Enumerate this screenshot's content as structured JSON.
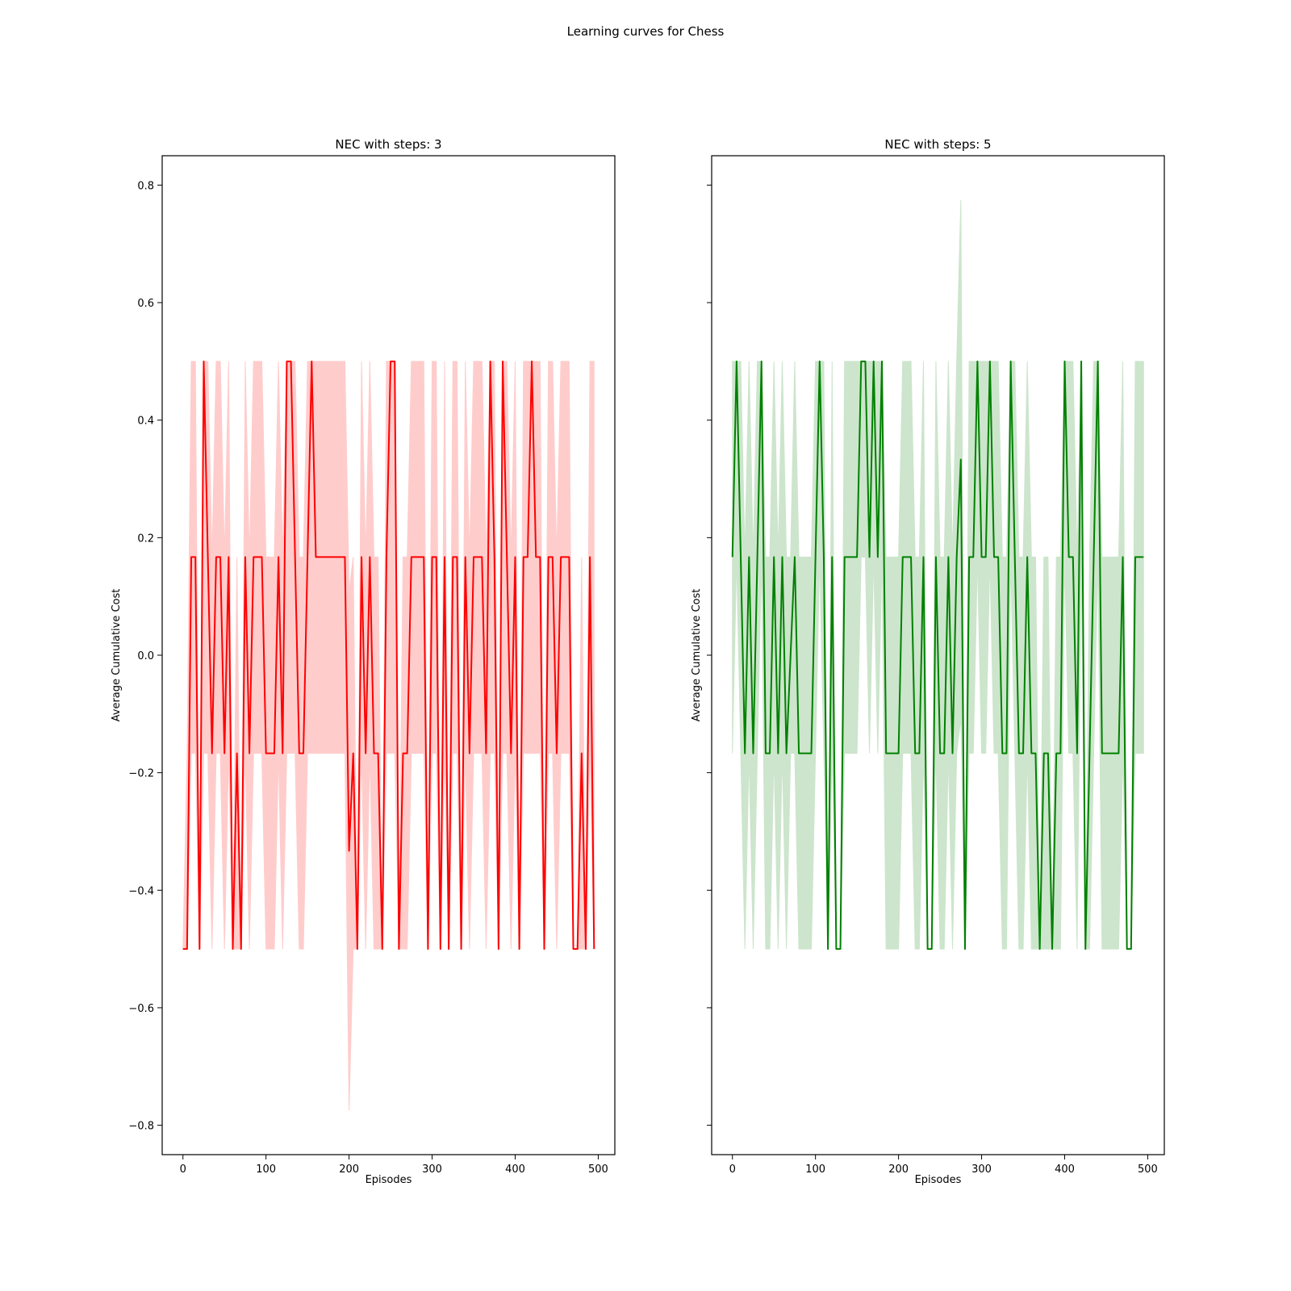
{
  "figure": {
    "title": "Learning curves for Chess"
  },
  "chart_data": [
    {
      "type": "line",
      "title": "NEC with steps: 3",
      "xlabel": "Episodes",
      "ylabel": "Average Cumulative Cost",
      "xlim": [
        -25,
        520
      ],
      "ylim": [
        -0.85,
        0.85
      ],
      "xticks": [
        0,
        100,
        200,
        300,
        400,
        500
      ],
      "yticks": [
        -0.8,
        -0.6,
        -0.4,
        -0.2,
        0.0,
        0.2,
        0.4,
        0.6,
        0.8
      ],
      "ytick_labels": [
        "−0.8",
        "−0.6",
        "−0.4",
        "−0.2",
        "0.0",
        "0.2",
        "0.4",
        "0.6",
        "0.8"
      ],
      "show_ytick_labels": true,
      "grid": false,
      "line_color": "#ff0000",
      "band_color": "#ffcccc",
      "series": [
        {
          "x": [
            0,
            5,
            10,
            15,
            20,
            25,
            30,
            35,
            40,
            45,
            50,
            55,
            60,
            65,
            70,
            75,
            80,
            85,
            90,
            95,
            100,
            105,
            110,
            115,
            120,
            125,
            130,
            135,
            140,
            145,
            150,
            155,
            160,
            165,
            170,
            175,
            180,
            185,
            190,
            195,
            200,
            205,
            210,
            215,
            220,
            225,
            230,
            235,
            240,
            245,
            250,
            255,
            260,
            265,
            270,
            275,
            280,
            285,
            290,
            295,
            300,
            305,
            310,
            315,
            320,
            325,
            330,
            335,
            340,
            345,
            350,
            355,
            360,
            365,
            370,
            375,
            380,
            385,
            390,
            395,
            400,
            405,
            410,
            415,
            420,
            425,
            430,
            435,
            440,
            445,
            450,
            455,
            460,
            465,
            470,
            475,
            480,
            485,
            490,
            495
          ],
          "mean": [
            -0.5,
            -0.5,
            0.167,
            0.167,
            -0.5,
            0.5,
            0.167,
            -0.167,
            0.167,
            0.167,
            -0.167,
            0.167,
            -0.5,
            -0.167,
            -0.5,
            0.167,
            -0.167,
            0.167,
            0.167,
            0.167,
            -0.167,
            -0.167,
            -0.167,
            0.167,
            -0.167,
            0.5,
            0.5,
            0.167,
            -0.167,
            -0.167,
            0.167,
            0.5,
            0.167,
            0.167,
            0.167,
            0.167,
            0.167,
            0.167,
            0.167,
            0.167,
            -0.333,
            -0.167,
            -0.5,
            0.167,
            -0.167,
            0.167,
            -0.167,
            -0.167,
            -0.5,
            0.167,
            0.5,
            0.5,
            -0.5,
            -0.167,
            -0.167,
            0.167,
            0.167,
            0.167,
            0.167,
            -0.5,
            0.167,
            0.167,
            -0.5,
            0.167,
            -0.5,
            0.167,
            0.167,
            -0.5,
            0.167,
            -0.167,
            0.167,
            0.167,
            0.167,
            -0.167,
            0.5,
            0.167,
            -0.5,
            0.5,
            0.167,
            -0.167,
            0.167,
            -0.5,
            0.167,
            0.167,
            0.5,
            0.167,
            0.167,
            -0.5,
            0.167,
            0.167,
            -0.167,
            0.167,
            0.167,
            0.167,
            -0.5,
            -0.5,
            -0.167,
            -0.5,
            0.167,
            -0.5
          ],
          "lower": [
            -0.5,
            -0.5,
            -0.167,
            -0.167,
            -0.5,
            -0.167,
            -0.167,
            -0.5,
            -0.167,
            -0.167,
            -0.5,
            -0.167,
            -0.5,
            -0.5,
            -0.5,
            -0.167,
            -0.5,
            -0.167,
            -0.167,
            -0.167,
            -0.5,
            -0.5,
            -0.5,
            -0.167,
            -0.5,
            -0.167,
            -0.167,
            -0.167,
            -0.5,
            -0.5,
            -0.167,
            -0.167,
            -0.167,
            -0.167,
            -0.167,
            -0.167,
            -0.167,
            -0.167,
            -0.167,
            -0.167,
            -0.775,
            -0.5,
            -0.5,
            -0.167,
            -0.5,
            -0.167,
            -0.5,
            -0.5,
            -0.5,
            -0.167,
            -0.167,
            -0.167,
            -0.5,
            -0.5,
            -0.5,
            -0.167,
            -0.167,
            -0.167,
            -0.167,
            -0.5,
            -0.167,
            -0.167,
            -0.5,
            -0.167,
            -0.5,
            -0.167,
            -0.167,
            -0.5,
            -0.167,
            -0.5,
            -0.167,
            -0.167,
            -0.167,
            -0.5,
            -0.167,
            -0.167,
            -0.5,
            -0.167,
            -0.167,
            -0.5,
            -0.167,
            -0.5,
            -0.167,
            -0.167,
            -0.167,
            -0.167,
            -0.167,
            -0.5,
            -0.167,
            -0.167,
            -0.5,
            -0.167,
            -0.167,
            -0.167,
            -0.5,
            -0.5,
            -0.5,
            -0.5,
            -0.167,
            -0.5
          ],
          "upper": [
            -0.5,
            -0.167,
            0.5,
            0.5,
            -0.5,
            0.5,
            0.5,
            0.167,
            0.5,
            0.5,
            0.167,
            0.5,
            -0.5,
            0.167,
            -0.5,
            0.5,
            0.167,
            0.5,
            0.5,
            0.5,
            0.167,
            0.167,
            0.167,
            0.5,
            0.167,
            0.5,
            0.5,
            0.5,
            0.167,
            0.167,
            0.5,
            0.5,
            0.5,
            0.5,
            0.5,
            0.5,
            0.5,
            0.5,
            0.5,
            0.5,
            0.108,
            0.167,
            -0.5,
            0.5,
            0.167,
            0.5,
            0.167,
            0.167,
            -0.5,
            0.5,
            0.5,
            0.5,
            -0.5,
            0.167,
            0.167,
            0.5,
            0.5,
            0.5,
            0.5,
            -0.5,
            0.5,
            0.5,
            -0.5,
            0.5,
            -0.5,
            0.5,
            0.5,
            -0.5,
            0.5,
            0.167,
            0.5,
            0.5,
            0.5,
            0.167,
            0.5,
            0.5,
            -0.5,
            0.5,
            0.5,
            0.167,
            0.5,
            -0.5,
            0.5,
            0.5,
            0.5,
            0.5,
            0.5,
            -0.5,
            0.5,
            0.5,
            0.167,
            0.5,
            0.5,
            0.5,
            -0.5,
            -0.5,
            0.167,
            -0.5,
            0.5,
            0.5
          ]
        }
      ]
    },
    {
      "type": "line",
      "title": "NEC with steps: 5",
      "xlabel": "Episodes",
      "ylabel": "Average Cumulative Cost",
      "xlim": [
        -25,
        520
      ],
      "ylim": [
        -0.85,
        0.85
      ],
      "xticks": [
        0,
        100,
        200,
        300,
        400,
        500
      ],
      "yticks": [
        -0.8,
        -0.6,
        -0.4,
        -0.2,
        0.0,
        0.2,
        0.4,
        0.6,
        0.8
      ],
      "ytick_labels": [],
      "show_ytick_labels": false,
      "grid": false,
      "line_color": "#008000",
      "band_color": "#cce5cc",
      "series": [
        {
          "x": [
            0,
            5,
            10,
            15,
            20,
            25,
            30,
            35,
            40,
            45,
            50,
            55,
            60,
            65,
            70,
            75,
            80,
            85,
            90,
            95,
            100,
            105,
            110,
            115,
            120,
            125,
            130,
            135,
            140,
            145,
            150,
            155,
            160,
            165,
            170,
            175,
            180,
            185,
            190,
            195,
            200,
            205,
            210,
            215,
            220,
            225,
            230,
            235,
            240,
            245,
            250,
            255,
            260,
            265,
            270,
            275,
            280,
            285,
            290,
            295,
            300,
            305,
            310,
            315,
            320,
            325,
            330,
            335,
            340,
            345,
            350,
            355,
            360,
            365,
            370,
            375,
            380,
            385,
            390,
            395,
            400,
            405,
            410,
            415,
            420,
            425,
            430,
            435,
            440,
            445,
            450,
            455,
            460,
            465,
            470,
            475,
            480,
            485,
            490,
            495
          ],
          "mean": [
            0.167,
            0.5,
            0.167,
            -0.167,
            0.167,
            -0.167,
            0.167,
            0.5,
            -0.167,
            -0.167,
            0.167,
            -0.167,
            0.167,
            -0.167,
            0.0,
            0.167,
            -0.167,
            -0.167,
            -0.167,
            -0.167,
            0.167,
            0.5,
            0.167,
            -0.5,
            0.167,
            -0.5,
            -0.5,
            0.167,
            0.167,
            0.167,
            0.167,
            0.5,
            0.5,
            0.167,
            0.5,
            0.167,
            0.5,
            -0.167,
            -0.167,
            -0.167,
            -0.167,
            0.167,
            0.167,
            0.167,
            -0.167,
            -0.167,
            0.167,
            -0.5,
            -0.5,
            0.167,
            -0.167,
            -0.167,
            0.167,
            -0.167,
            0.167,
            0.333,
            -0.5,
            0.167,
            0.167,
            0.5,
            0.167,
            0.167,
            0.5,
            0.167,
            0.167,
            -0.167,
            -0.167,
            0.5,
            0.167,
            -0.167,
            -0.167,
            0.167,
            -0.167,
            -0.167,
            -0.5,
            -0.167,
            -0.167,
            -0.5,
            -0.167,
            -0.167,
            0.5,
            0.167,
            0.167,
            -0.167,
            0.5,
            -0.5,
            -0.167,
            0.167,
            0.5,
            -0.167,
            -0.167,
            -0.167,
            -0.167,
            -0.167,
            0.167,
            -0.5,
            -0.5,
            0.167,
            0.167,
            0.167
          ],
          "lower": [
            -0.167,
            0.167,
            -0.167,
            -0.5,
            -0.167,
            -0.5,
            -0.167,
            0.167,
            -0.5,
            -0.5,
            -0.167,
            -0.5,
            -0.167,
            -0.5,
            -0.167,
            -0.167,
            -0.5,
            -0.5,
            -0.5,
            -0.5,
            -0.167,
            0.167,
            -0.167,
            -0.5,
            -0.167,
            -0.5,
            -0.5,
            -0.167,
            -0.167,
            -0.167,
            -0.167,
            0.167,
            0.167,
            -0.167,
            0.167,
            -0.167,
            0.167,
            -0.5,
            -0.5,
            -0.5,
            -0.5,
            -0.167,
            -0.167,
            -0.167,
            -0.5,
            -0.5,
            -0.167,
            -0.5,
            -0.5,
            -0.167,
            -0.5,
            -0.5,
            -0.167,
            -0.5,
            -0.167,
            -0.107,
            -0.5,
            -0.167,
            -0.167,
            0.167,
            -0.167,
            -0.167,
            0.167,
            -0.167,
            -0.167,
            -0.5,
            -0.5,
            0.167,
            -0.167,
            -0.5,
            -0.5,
            -0.167,
            -0.5,
            -0.5,
            -0.5,
            -0.5,
            -0.5,
            -0.5,
            -0.5,
            -0.5,
            0.167,
            -0.167,
            -0.167,
            -0.5,
            0.167,
            -0.5,
            -0.5,
            -0.167,
            0.167,
            -0.5,
            -0.5,
            -0.5,
            -0.5,
            -0.5,
            -0.167,
            -0.5,
            -0.5,
            -0.167,
            -0.167,
            -0.167
          ],
          "upper": [
            0.5,
            0.5,
            0.5,
            0.167,
            0.5,
            0.167,
            0.5,
            0.5,
            0.167,
            0.167,
            0.5,
            0.167,
            0.5,
            0.167,
            0.167,
            0.5,
            0.167,
            0.167,
            0.167,
            0.167,
            0.5,
            0.5,
            0.5,
            -0.5,
            0.5,
            -0.5,
            -0.5,
            0.5,
            0.5,
            0.5,
            0.5,
            0.5,
            0.5,
            0.5,
            0.5,
            0.5,
            0.5,
            0.167,
            0.167,
            0.167,
            0.167,
            0.5,
            0.5,
            0.5,
            0.167,
            0.167,
            0.5,
            -0.5,
            -0.5,
            0.5,
            0.167,
            0.167,
            0.5,
            0.167,
            0.5,
            0.775,
            -0.5,
            0.5,
            0.5,
            0.5,
            0.5,
            0.5,
            0.5,
            0.5,
            0.5,
            0.167,
            0.167,
            0.5,
            0.5,
            0.167,
            0.167,
            0.5,
            0.167,
            0.167,
            -0.5,
            0.167,
            0.167,
            -0.5,
            0.167,
            0.167,
            0.5,
            0.5,
            0.5,
            0.167,
            0.5,
            -0.5,
            0.167,
            0.5,
            0.5,
            0.167,
            0.167,
            0.167,
            0.167,
            0.167,
            0.5,
            -0.5,
            -0.5,
            0.5,
            0.5,
            0.5
          ]
        }
      ]
    }
  ]
}
